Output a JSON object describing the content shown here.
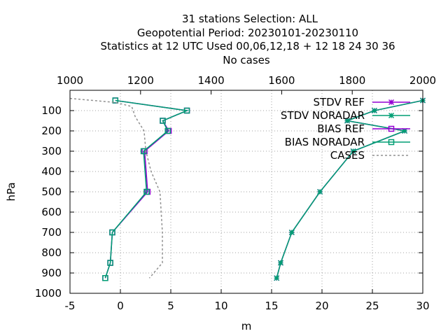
{
  "chart_data": {
    "type": "line",
    "title_lines": [
      "31 stations Selection: ALL",
      "Geopotential  Period: 20230101-20230110",
      "Statistics at 12 UTC  Used  00,06,12,18 + 12 18 24 30 36",
      "No cases"
    ],
    "xlabel": "m",
    "ylabel": "hPa",
    "xlim": [
      -5,
      30
    ],
    "x_ticks": [
      -5,
      0,
      5,
      10,
      15,
      20,
      25,
      30
    ],
    "x2lim": [
      1000,
      2000
    ],
    "x2_ticks": [
      1000,
      1200,
      1400,
      1600,
      1800,
      2000
    ],
    "ylim": [
      1000,
      0
    ],
    "y_ticks": [
      100,
      200,
      300,
      400,
      500,
      600,
      700,
      800,
      900,
      1000
    ],
    "grid": true,
    "legend_position": "top-right",
    "series": [
      {
        "name": "STDV REF",
        "color": "#9400d3",
        "marker": "star",
        "axis": "x1",
        "dashed": false,
        "points": [
          [
            30.0,
            50
          ],
          [
            25.2,
            100
          ],
          [
            22.5,
            150
          ],
          [
            28.2,
            200
          ],
          [
            23.1,
            300
          ],
          [
            19.8,
            500
          ],
          [
            17.0,
            700
          ],
          [
            15.9,
            850
          ],
          [
            15.5,
            925
          ]
        ]
      },
      {
        "name": "STDV NORADAR",
        "color": "#009e73",
        "marker": "star",
        "axis": "x1",
        "dashed": false,
        "points": [
          [
            30.0,
            50
          ],
          [
            25.2,
            100
          ],
          [
            22.5,
            150
          ],
          [
            28.2,
            200
          ],
          [
            23.1,
            300
          ],
          [
            19.8,
            500
          ],
          [
            17.0,
            700
          ],
          [
            15.9,
            850
          ],
          [
            15.5,
            925
          ]
        ]
      },
      {
        "name": "BIAS REF",
        "color": "#9400d3",
        "marker": "square",
        "axis": "x1",
        "dashed": false,
        "points": [
          [
            -0.5,
            50
          ],
          [
            6.6,
            100
          ],
          [
            4.2,
            150
          ],
          [
            4.8,
            200
          ],
          [
            2.4,
            300
          ],
          [
            2.7,
            500
          ],
          [
            -0.8,
            700
          ],
          [
            -1.0,
            850
          ],
          [
            -1.5,
            925
          ]
        ]
      },
      {
        "name": "BIAS NORADAR",
        "color": "#009e73",
        "marker": "square",
        "axis": "x1",
        "dashed": false,
        "points": [
          [
            -0.5,
            50
          ],
          [
            6.6,
            100
          ],
          [
            4.2,
            150
          ],
          [
            4.7,
            200
          ],
          [
            2.3,
            300
          ],
          [
            2.6,
            500
          ],
          [
            -0.8,
            700
          ],
          [
            -1.0,
            850
          ],
          [
            -1.5,
            925
          ]
        ]
      },
      {
        "name": "CASES",
        "color": "#909090",
        "marker": "none",
        "axis": "x2",
        "dashed": true,
        "points": [
          [
            1000,
            40
          ],
          [
            1130,
            60
          ],
          [
            1175,
            80
          ],
          [
            1185,
            130
          ],
          [
            1210,
            200
          ],
          [
            1215,
            300
          ],
          [
            1230,
            400
          ],
          [
            1255,
            500
          ],
          [
            1262,
            700
          ],
          [
            1262,
            850
          ],
          [
            1225,
            925
          ]
        ]
      }
    ]
  }
}
